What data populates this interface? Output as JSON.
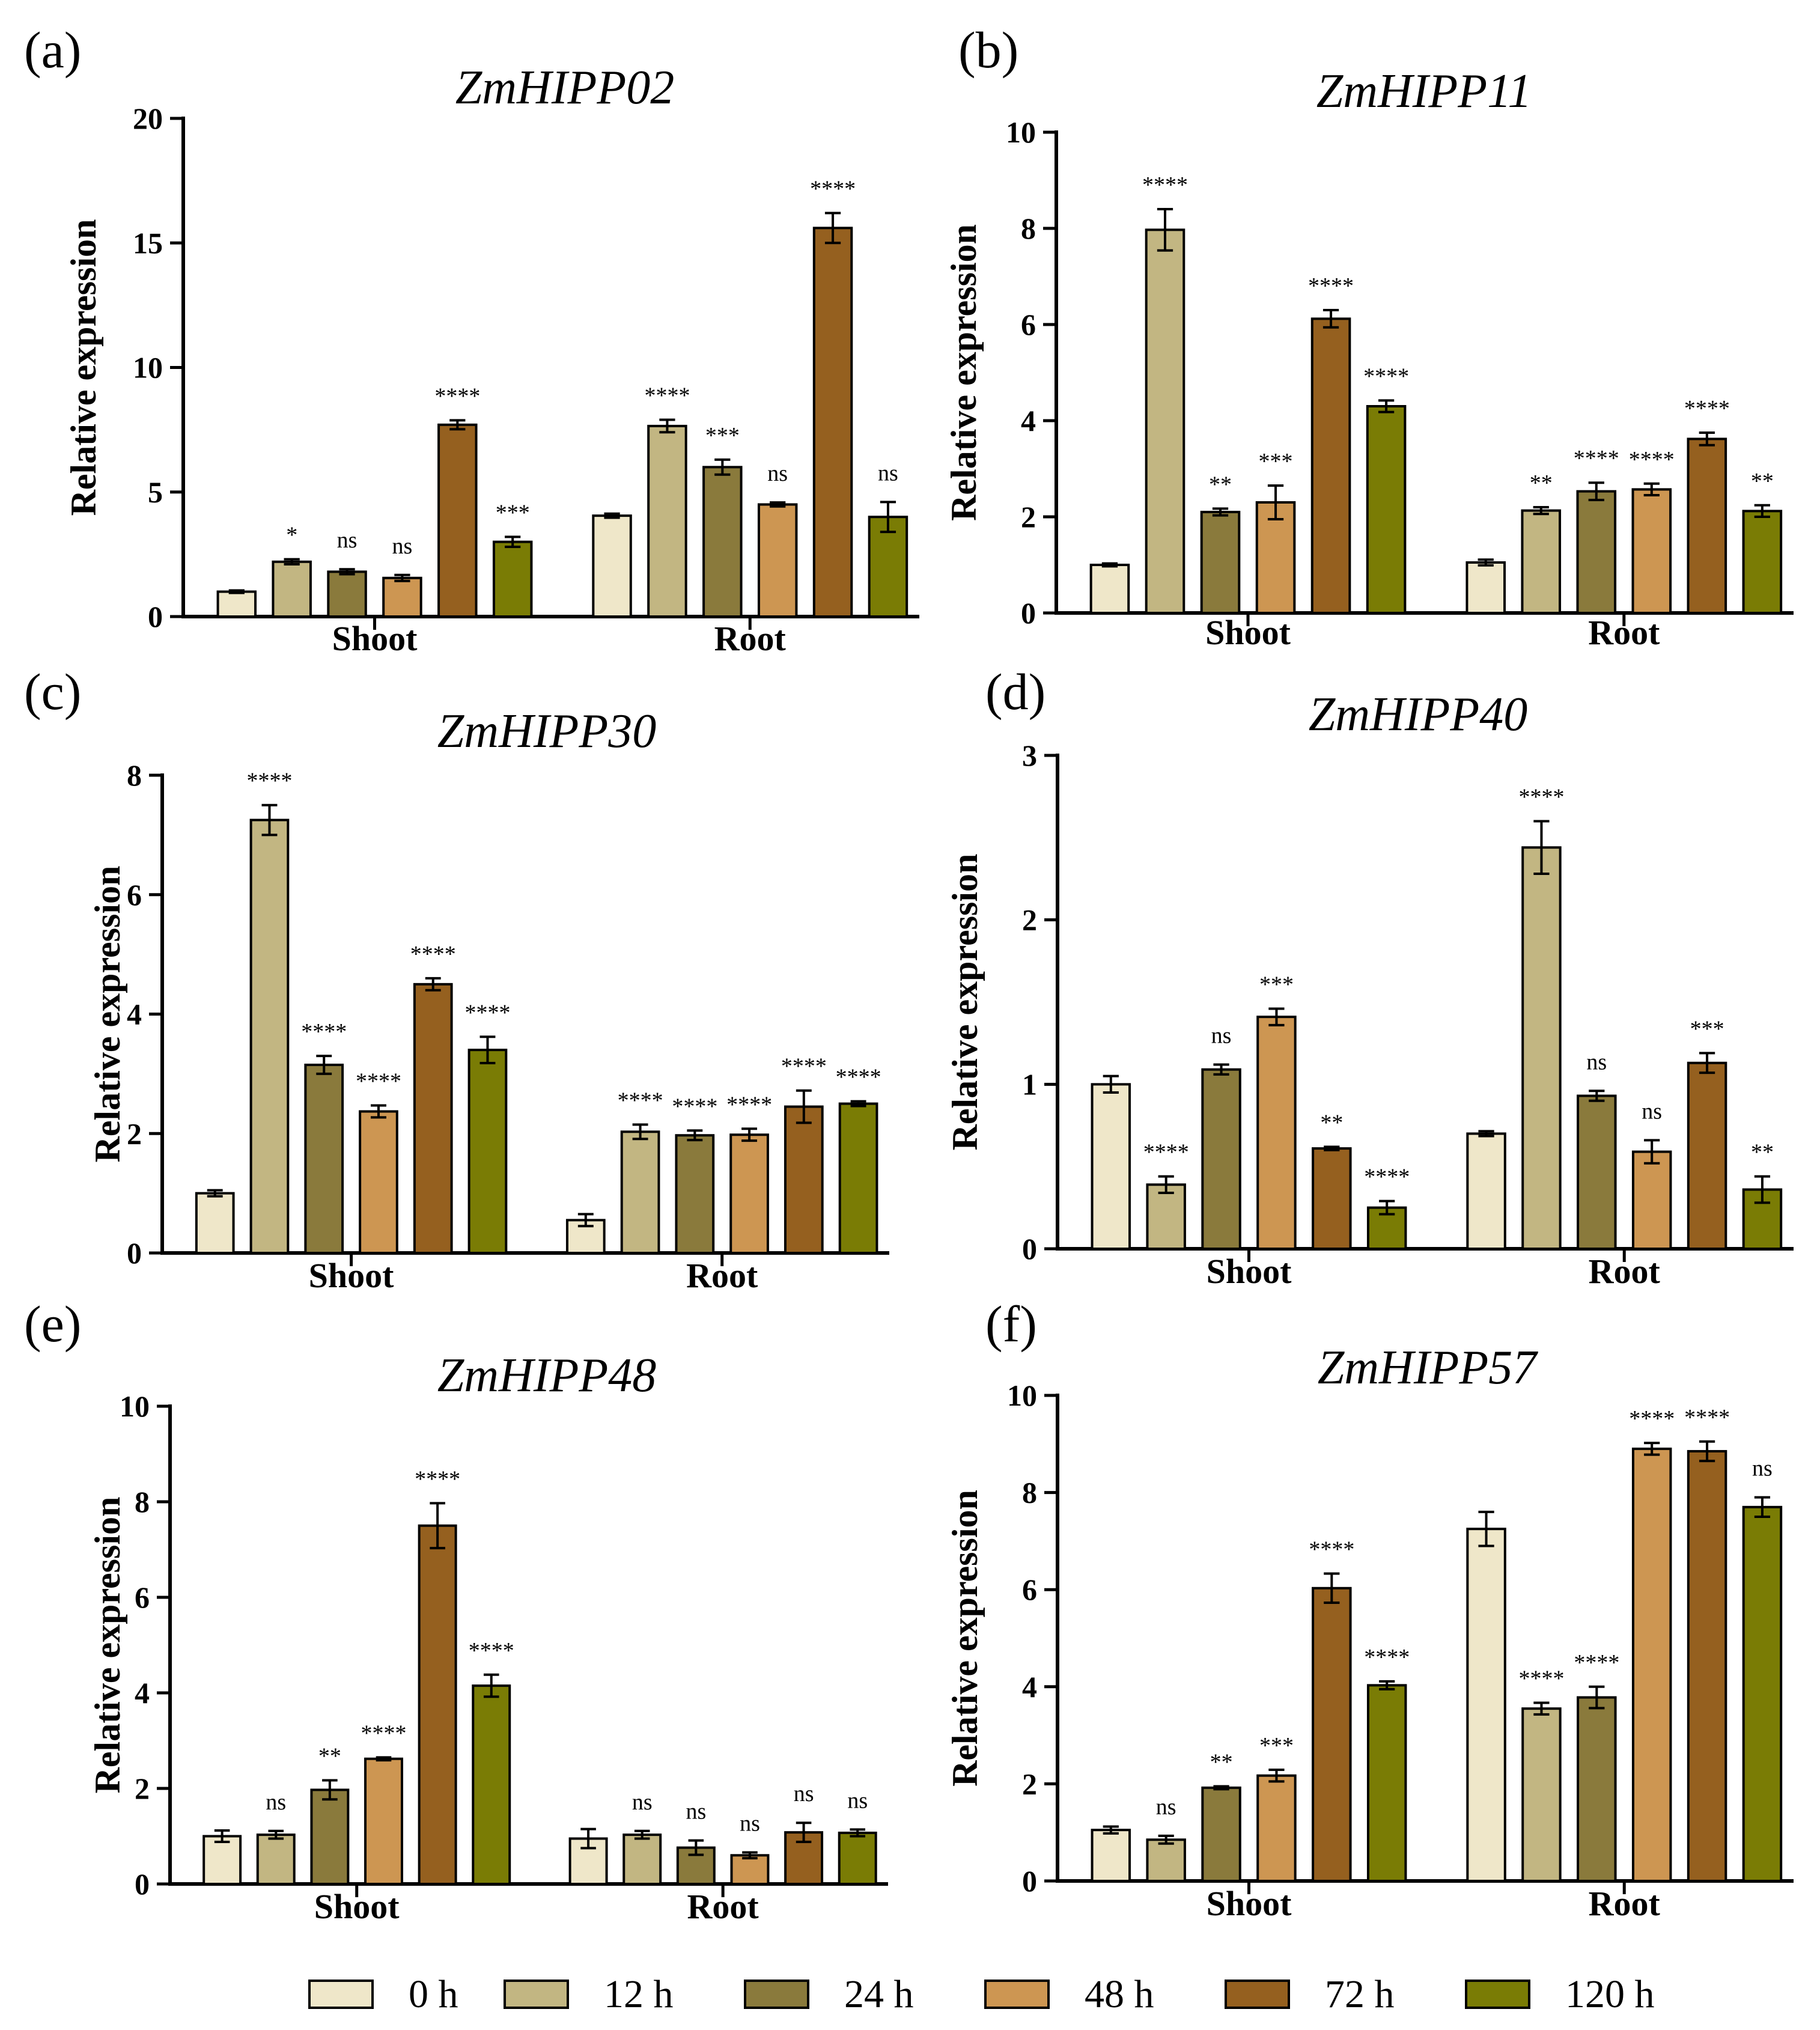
{
  "colors": {
    "0 h": "#efe7c9",
    "12 h": "#c2b682",
    "24 h": "#8a7a3c",
    "48 h": "#cd9652",
    "72 h": "#95601f",
    "120 h": "#7a7c05"
  },
  "legend": {
    "items": [
      "0 h",
      "12 h",
      "24 h",
      "48 h",
      "72 h",
      "120 h"
    ]
  },
  "chart_data": [
    {
      "type": "bar",
      "panel": "(a)",
      "title": "ZmHIPP02",
      "ylabel": "Relative expression",
      "xlabel": "",
      "ylim": [
        0,
        20
      ],
      "yticks": [
        0,
        5,
        10,
        15,
        20
      ],
      "categories": [
        "Shoot",
        "Root"
      ],
      "series": [
        {
          "name": "0 h",
          "values": [
            1.0,
            4.05
          ],
          "errors": [
            0.05,
            0.08
          ],
          "significance": [
            "",
            ""
          ]
        },
        {
          "name": "12 h",
          "values": [
            2.2,
            7.65
          ],
          "errors": [
            0.1,
            0.25
          ],
          "significance": [
            "*",
            "****"
          ]
        },
        {
          "name": "24 h",
          "values": [
            1.8,
            6.0
          ],
          "errors": [
            0.1,
            0.3
          ],
          "significance": [
            "ns",
            "***"
          ]
        },
        {
          "name": "48 h",
          "values": [
            1.55,
            4.5
          ],
          "errors": [
            0.12,
            0.08
          ],
          "significance": [
            "ns",
            "ns"
          ]
        },
        {
          "name": "72 h",
          "values": [
            7.7,
            15.6
          ],
          "errors": [
            0.18,
            0.6
          ],
          "significance": [
            "****",
            "****"
          ]
        },
        {
          "name": "120 h",
          "values": [
            3.0,
            4.0
          ],
          "errors": [
            0.2,
            0.6
          ],
          "significance": [
            "***",
            "ns"
          ]
        }
      ]
    },
    {
      "type": "bar",
      "panel": "(b)",
      "title": "ZmHIPP11",
      "ylabel": "Relative expression",
      "xlabel": "",
      "ylim": [
        0,
        10
      ],
      "yticks": [
        0,
        2,
        4,
        6,
        8,
        10
      ],
      "categories": [
        "Shoot",
        "Root"
      ],
      "series": [
        {
          "name": "0 h",
          "values": [
            1.0,
            1.05
          ],
          "errors": [
            0.03,
            0.06
          ],
          "significance": [
            "",
            ""
          ]
        },
        {
          "name": "12 h",
          "values": [
            7.97,
            2.13
          ],
          "errors": [
            0.43,
            0.07
          ],
          "significance": [
            "****",
            "**"
          ]
        },
        {
          "name": "24 h",
          "values": [
            2.1,
            2.53
          ],
          "errors": [
            0.07,
            0.18
          ],
          "significance": [
            "**",
            "****"
          ]
        },
        {
          "name": "48 h",
          "values": [
            2.3,
            2.57
          ],
          "errors": [
            0.35,
            0.12
          ],
          "significance": [
            "***",
            "****"
          ]
        },
        {
          "name": "72 h",
          "values": [
            6.12,
            3.62
          ],
          "errors": [
            0.18,
            0.13
          ],
          "significance": [
            "****",
            "****"
          ]
        },
        {
          "name": "120 h",
          "values": [
            4.3,
            2.12
          ],
          "errors": [
            0.12,
            0.12
          ],
          "significance": [
            "****",
            "**"
          ]
        }
      ]
    },
    {
      "type": "bar",
      "panel": "(c)",
      "title": "ZmHIPP30",
      "ylabel": "Relative expression",
      "xlabel": "",
      "ylim": [
        0,
        8
      ],
      "yticks": [
        0,
        2,
        4,
        6,
        8
      ],
      "categories": [
        "Shoot",
        "Root"
      ],
      "series": [
        {
          "name": "0 h",
          "values": [
            1.0,
            0.55
          ],
          "errors": [
            0.05,
            0.1
          ],
          "significance": [
            "",
            ""
          ]
        },
        {
          "name": "12 h",
          "values": [
            7.25,
            2.03
          ],
          "errors": [
            0.25,
            0.12
          ],
          "significance": [
            "****",
            "****"
          ]
        },
        {
          "name": "24 h",
          "values": [
            3.15,
            1.97
          ],
          "errors": [
            0.15,
            0.08
          ],
          "significance": [
            "****",
            "****"
          ]
        },
        {
          "name": "48 h",
          "values": [
            2.37,
            1.98
          ],
          "errors": [
            0.1,
            0.1
          ],
          "significance": [
            "****",
            "****"
          ]
        },
        {
          "name": "72 h",
          "values": [
            4.5,
            2.45
          ],
          "errors": [
            0.1,
            0.27
          ],
          "significance": [
            "****",
            "****"
          ]
        },
        {
          "name": "120 h",
          "values": [
            3.4,
            2.5
          ],
          "errors": [
            0.22,
            0.04
          ],
          "significance": [
            "****",
            "****"
          ]
        }
      ]
    },
    {
      "type": "bar",
      "panel": "(d)",
      "title": "ZmHIPP40",
      "ylabel": "Relative expression",
      "xlabel": "",
      "ylim": [
        0,
        3
      ],
      "yticks": [
        0,
        1,
        2,
        3
      ],
      "categories": [
        "Shoot",
        "Root"
      ],
      "series": [
        {
          "name": "0 h",
          "values": [
            1.0,
            0.7
          ],
          "errors": [
            0.05,
            0.015
          ],
          "significance": [
            "",
            ""
          ]
        },
        {
          "name": "12 h",
          "values": [
            0.39,
            2.44
          ],
          "errors": [
            0.05,
            0.16
          ],
          "significance": [
            "****",
            "****"
          ]
        },
        {
          "name": "24 h",
          "values": [
            1.09,
            0.93
          ],
          "errors": [
            0.03,
            0.03
          ],
          "significance": [
            "ns",
            "ns"
          ]
        },
        {
          "name": "48 h",
          "values": [
            1.41,
            0.59
          ],
          "errors": [
            0.05,
            0.07
          ],
          "significance": [
            "***",
            "ns"
          ]
        },
        {
          "name": "72 h",
          "values": [
            0.61,
            1.13
          ],
          "errors": [
            0.01,
            0.06
          ],
          "significance": [
            "**",
            "***"
          ]
        },
        {
          "name": "120 h",
          "values": [
            0.25,
            0.36
          ],
          "errors": [
            0.04,
            0.08
          ],
          "significance": [
            "****",
            "**"
          ]
        }
      ]
    },
    {
      "type": "bar",
      "panel": "(e)",
      "title": "ZmHIPP48",
      "ylabel": "Relative expression",
      "xlabel": "",
      "ylim": [
        0,
        10
      ],
      "yticks": [
        0,
        2,
        4,
        6,
        8,
        10
      ],
      "categories": [
        "Shoot",
        "Root"
      ],
      "series": [
        {
          "name": "0 h",
          "values": [
            1.0,
            0.95
          ],
          "errors": [
            0.12,
            0.2
          ],
          "significance": [
            "",
            ""
          ]
        },
        {
          "name": "12 h",
          "values": [
            1.03,
            1.03
          ],
          "errors": [
            0.08,
            0.08
          ],
          "significance": [
            "ns",
            "ns"
          ]
        },
        {
          "name": "24 h",
          "values": [
            1.97,
            0.76
          ],
          "errors": [
            0.2,
            0.15
          ],
          "significance": [
            "**",
            "ns"
          ]
        },
        {
          "name": "48 h",
          "values": [
            2.62,
            0.6
          ],
          "errors": [
            0.03,
            0.06
          ],
          "significance": [
            "****",
            "ns"
          ]
        },
        {
          "name": "72 h",
          "values": [
            7.5,
            1.08
          ],
          "errors": [
            0.47,
            0.2
          ],
          "significance": [
            "****",
            "ns"
          ]
        },
        {
          "name": "120 h",
          "values": [
            4.15,
            1.07
          ],
          "errors": [
            0.23,
            0.07
          ],
          "significance": [
            "****",
            "ns"
          ]
        }
      ]
    },
    {
      "type": "bar",
      "panel": "(f)",
      "title": "ZmHIPP57",
      "ylabel": "Relative expression",
      "xlabel": "",
      "ylim": [
        0,
        10
      ],
      "yticks": [
        0,
        2,
        4,
        6,
        8,
        10
      ],
      "categories": [
        "Shoot",
        "Root"
      ],
      "series": [
        {
          "name": "0 h",
          "values": [
            1.05,
            7.25
          ],
          "errors": [
            0.07,
            0.35
          ],
          "significance": [
            "",
            ""
          ]
        },
        {
          "name": "12 h",
          "values": [
            0.85,
            3.55
          ],
          "errors": [
            0.08,
            0.12
          ],
          "significance": [
            "ns",
            "****"
          ]
        },
        {
          "name": "24 h",
          "values": [
            1.92,
            3.78
          ],
          "errors": [
            0.03,
            0.22
          ],
          "significance": [
            "**",
            "****"
          ]
        },
        {
          "name": "48 h",
          "values": [
            2.17,
            8.9
          ],
          "errors": [
            0.12,
            0.12
          ],
          "significance": [
            "***",
            "****"
          ]
        },
        {
          "name": "72 h",
          "values": [
            6.03,
            8.85
          ],
          "errors": [
            0.3,
            0.2
          ],
          "significance": [
            "****",
            "****"
          ]
        },
        {
          "name": "120 h",
          "values": [
            4.03,
            7.7
          ],
          "errors": [
            0.08,
            0.2
          ],
          "significance": [
            "****",
            "ns"
          ]
        }
      ]
    }
  ]
}
